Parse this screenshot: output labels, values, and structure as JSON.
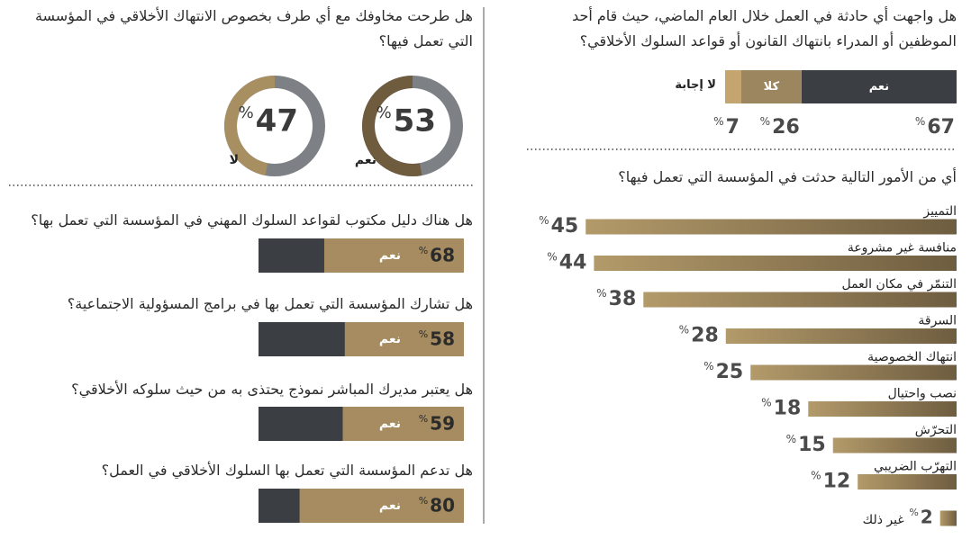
{
  "chart_data": [
    {
      "type": "stacked-bar",
      "title": "هل واجهت أي حادثة في العمل خلال العام الماضي، حيث قام أحد الموظفين أو المدراء بانتهاك القانون أو قواعد السلوك الأخلاقي؟",
      "unit": "%",
      "series": [
        {
          "name": "نعم",
          "color": "#3b3e42",
          "values": [
            67
          ]
        },
        {
          "name": "كلا",
          "color": "#9c865f",
          "values": [
            26
          ]
        },
        {
          "name": "لا إجابة",
          "color": "#c4a46f",
          "values": [
            7
          ]
        }
      ]
    },
    {
      "type": "bar",
      "title": "أي من الأمور التالية حدثت في المؤسسة التي تعمل فيها؟",
      "unit": "%",
      "categories": [
        "التمييز",
        "منافسة غير مشروعة",
        "التنمّر في مكان العمل",
        "السرقة",
        "انتهاك الخصوصية",
        "نصب واحتيال",
        "التحرّش",
        "التهرّب الضريبي",
        "غير ذلك"
      ],
      "values": [
        45,
        44,
        38,
        28,
        25,
        18,
        15,
        12,
        2
      ],
      "colors": [
        "#b39a6a",
        "#6e5d40"
      ]
    },
    {
      "type": "donut",
      "title": "هل طرحت مخاوفك مع أي طرف بخصوص الانتهاك الأخلاقي في المؤسسة التي تعمل فيها؟",
      "unit": "%",
      "categories": [
        "نعم",
        "لا"
      ],
      "values": [
        53,
        47
      ],
      "colors": [
        "#6f5b3e",
        "#a88f62"
      ],
      "track_color": "#7d8085"
    },
    {
      "type": "progress",
      "title": "هل هناك دليل مكتوب لقواعد السلوك المهني في المؤسسة التي تعمل بها؟",
      "unit": "%",
      "category": "نعم",
      "value": 68,
      "color": "#a68c60",
      "track_color": "#3b3e42"
    },
    {
      "type": "progress",
      "title": "هل تشارك المؤسسة التي تعمل بها في برامج المسؤولية الاجتماعية؟",
      "unit": "%",
      "category": "نعم",
      "value": 58,
      "color": "#a68c60",
      "track_color": "#3b3e42"
    },
    {
      "type": "progress",
      "title": "هل يعتبر مديرك المباشر نموذج يحتذى به من حيث سلوكه الأخلاقي؟",
      "unit": "%",
      "category": "نعم",
      "value": 59,
      "color": "#a68c60",
      "track_color": "#3b3e42"
    },
    {
      "type": "progress",
      "title": "هل تدعم المؤسسة التي تعمل بها السلوك الأخلاقي في العمل؟",
      "unit": "%",
      "category": "نعم",
      "value": 80,
      "color": "#a68c60",
      "track_color": "#3b3e42"
    }
  ]
}
